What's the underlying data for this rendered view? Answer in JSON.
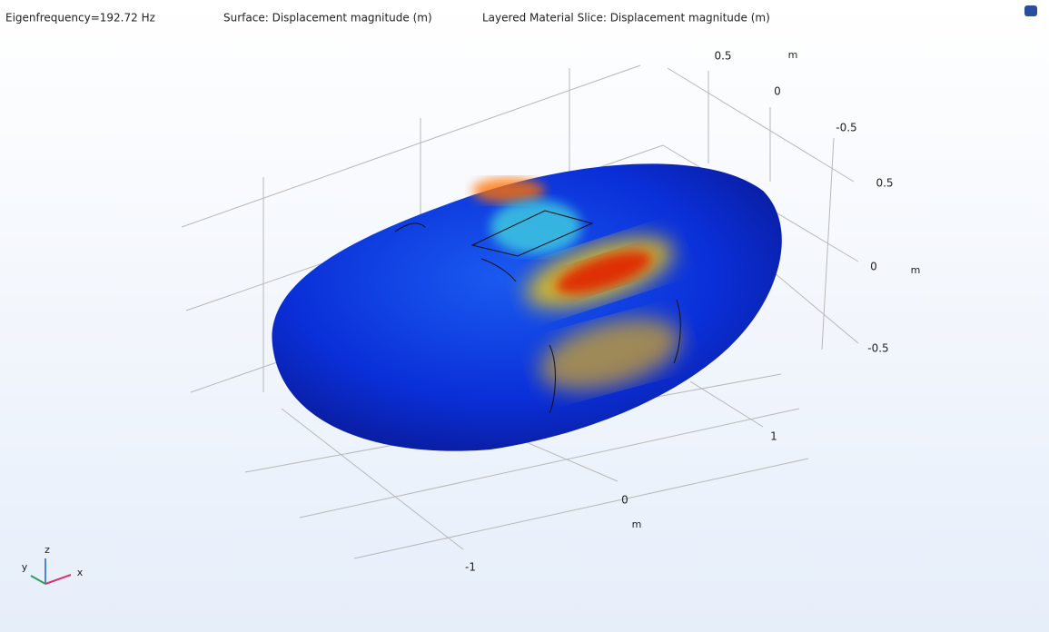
{
  "header": {
    "eigenfrequency": "Eigenfrequency=192.72 Hz",
    "surface": "Surface: Displacement magnitude (m)",
    "slice": "Layered Material Slice: Displacement magnitude (m)"
  },
  "axes": {
    "top": {
      "ticks": [
        "0.5",
        "0",
        "-0.5"
      ],
      "unit": "m"
    },
    "right": {
      "ticks": [
        "0.5",
        "0",
        "-0.5"
      ],
      "unit": "m"
    },
    "bottom": {
      "ticks": [
        "1",
        "0",
        "-1"
      ],
      "unit": "m"
    }
  },
  "triad": {
    "z": "z",
    "y": "y",
    "x": "x"
  }
}
